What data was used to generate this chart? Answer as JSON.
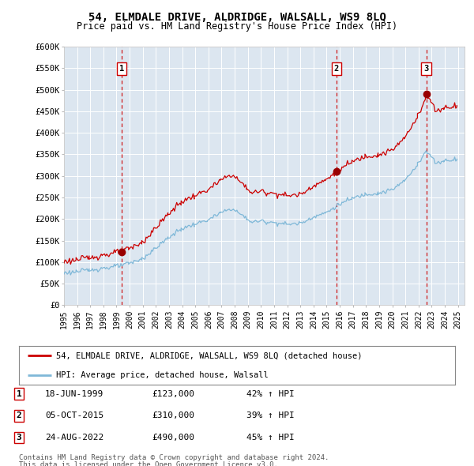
{
  "title": "54, ELMDALE DRIVE, ALDRIDGE, WALSALL, WS9 8LQ",
  "subtitle": "Price paid vs. HM Land Registry's House Price Index (HPI)",
  "ylim": [
    0,
    600000
  ],
  "yticks": [
    0,
    50000,
    100000,
    150000,
    200000,
    250000,
    300000,
    350000,
    400000,
    450000,
    500000,
    550000,
    600000
  ],
  "ytick_labels": [
    "£0",
    "£50K",
    "£100K",
    "£150K",
    "£200K",
    "£250K",
    "£300K",
    "£350K",
    "£400K",
    "£450K",
    "£500K",
    "£550K",
    "£600K"
  ],
  "background_color": "#ffffff",
  "plot_bg_color": "#dce6f0",
  "grid_color": "#ffffff",
  "red_line_color": "#cc0000",
  "blue_line_color": "#7fb8d8",
  "sale_marker_color": "#990000",
  "vline_color": "#cc0000",
  "sale1_year": 1999,
  "sale1_month": 6,
  "sale1_price": 123000,
  "sale2_year": 2015,
  "sale2_month": 10,
  "sale2_price": 310000,
  "sale3_year": 2022,
  "sale3_month": 8,
  "sale3_price": 490000,
  "hpi_start_year": 1995,
  "hpi_end_year": 2025,
  "xlim_start": 1995,
  "xlim_end": 2025.5,
  "legend_label_red": "54, ELMDALE DRIVE, ALDRIDGE, WALSALL, WS9 8LQ (detached house)",
  "legend_label_blue": "HPI: Average price, detached house, Walsall",
  "table_rows": [
    {
      "num": "1",
      "date": "18-JUN-1999",
      "price": "£123,000",
      "change": "42% ↑ HPI"
    },
    {
      "num": "2",
      "date": "05-OCT-2015",
      "price": "£310,000",
      "change": "39% ↑ HPI"
    },
    {
      "num": "3",
      "date": "24-AUG-2022",
      "price": "£490,000",
      "change": "45% ↑ HPI"
    }
  ],
  "footnote_line1": "Contains HM Land Registry data © Crown copyright and database right 2024.",
  "footnote_line2": "This data is licensed under the Open Government Licence v3.0.",
  "hpi_anchors_blue": {
    "1995.0": 75000,
    "1996.0": 78000,
    "1997.0": 82000,
    "1998.0": 86000,
    "1999.0": 90000,
    "2000.0": 97000,
    "2001.0": 108000,
    "2002.0": 133000,
    "2003.0": 158000,
    "2004.0": 178000,
    "2005.0": 188000,
    "2006.0": 198000,
    "2007.0": 215000,
    "2007.8": 225000,
    "2008.5": 210000,
    "2009.3": 193000,
    "2010.0": 195000,
    "2011.0": 192000,
    "2012.0": 188000,
    "2013.0": 190000,
    "2014.0": 205000,
    "2015.0": 215000,
    "2016.0": 235000,
    "2017.0": 248000,
    "2018.0": 258000,
    "2019.0": 260000,
    "2020.0": 268000,
    "2021.0": 290000,
    "2022.0": 330000,
    "2022.5": 355000,
    "2022.9": 350000,
    "2023.3": 330000,
    "2024.0": 335000,
    "2025.0": 340000
  }
}
